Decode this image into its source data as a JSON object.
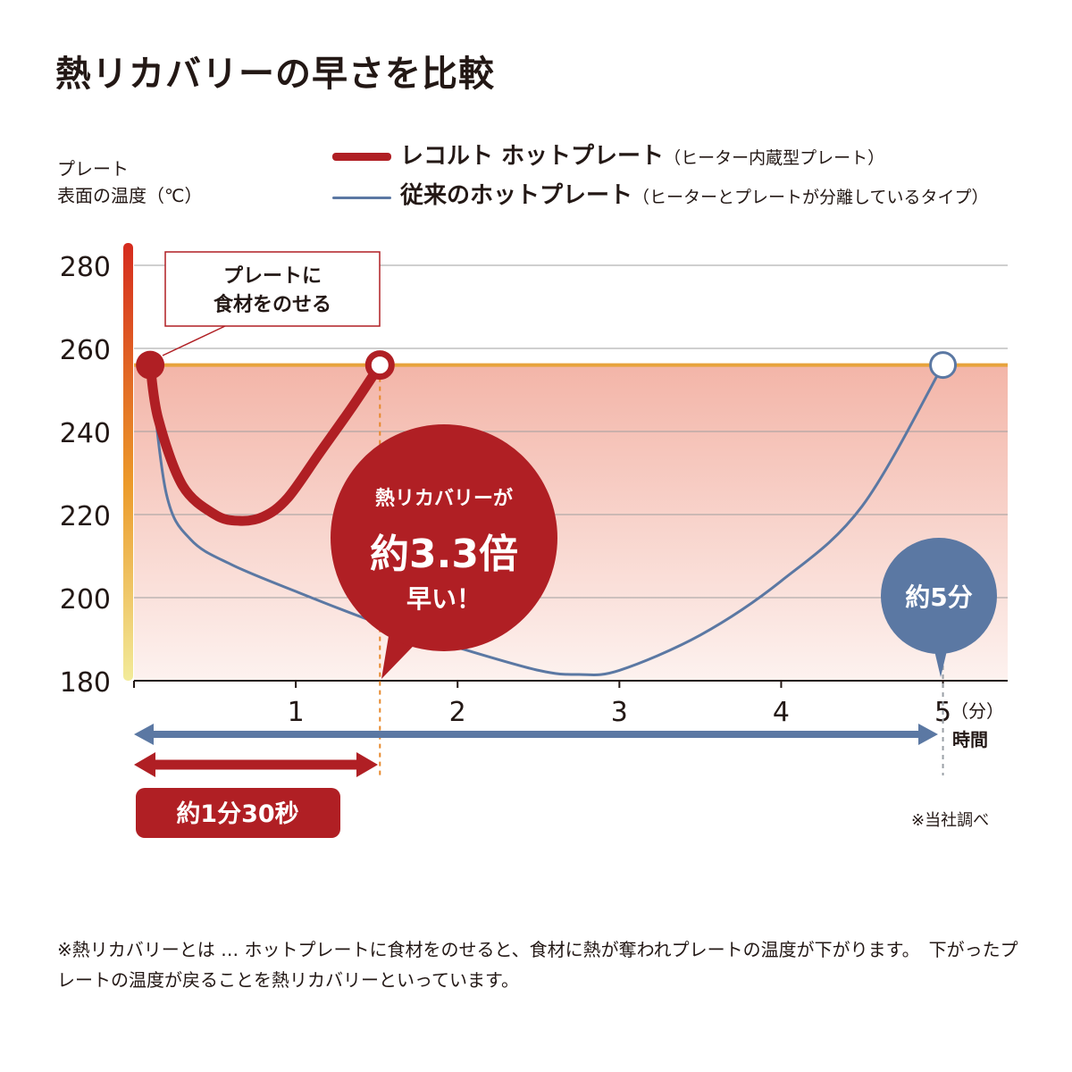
{
  "title": "熱リカバリーの早さを比較",
  "y_axis_label_line1": "プレート",
  "y_axis_label_line2": "表面の温度（℃）",
  "legend": {
    "recolte": {
      "name": "レコルト ホットプレート",
      "note": "（ヒーター内蔵型プレート）"
    },
    "conventional": {
      "name": "従来のホットプレート",
      "note": "（ヒーターとプレートが分離しているタイプ）"
    }
  },
  "annotations": {
    "callout_line1": "プレートに",
    "callout_line2": "食材をのせる",
    "bubble_line1": "熱リカバリーが",
    "bubble_big": "約3.3倍",
    "bubble_line3": "早い！",
    "five_min": "約5分",
    "badge": "約1分30秒",
    "unit": "（分）",
    "xlabel": "時間",
    "source": "※当社調べ"
  },
  "footnote": "※熱リカバリーとは … ホットプレートに食材をのせると、食材に熱が奪われプレートの温度が下がります。　下がったプレートの温度が戻ることを熱リカバリーといっています。",
  "colors": {
    "red": "#b01f24",
    "blue": "#5b78a3",
    "target_line": "#e7a33c"
  },
  "chart_data": {
    "type": "line",
    "xlim": [
      0,
      5.4
    ],
    "ylim": [
      180,
      280
    ],
    "x_ticks": [
      1,
      2,
      3,
      4,
      5
    ],
    "x_tick_labels": [
      "1",
      "2",
      "3",
      "4",
      "5"
    ],
    "y_ticks": [
      180,
      200,
      220,
      240,
      260,
      280
    ],
    "y_tick_labels": [
      "180",
      "200",
      "220",
      "240",
      "260",
      "280"
    ],
    "target_temperature": 256,
    "series": [
      {
        "name": "レコルト ホットプレート",
        "color": "#b01f24",
        "x": [
          0.1,
          0.15,
          0.3,
          0.5,
          0.65,
          0.8,
          0.95,
          1.15,
          1.35,
          1.52
        ],
        "y": [
          256,
          243,
          227,
          220,
          218.5,
          219.5,
          224,
          235,
          246,
          256
        ]
      },
      {
        "name": "従来のホットプレート",
        "color": "#5b78a3",
        "x": [
          0.1,
          0.2,
          0.35,
          0.6,
          1.0,
          1.5,
          2.0,
          2.5,
          2.75,
          3.0,
          3.5,
          4.0,
          4.5,
          5.0
        ],
        "y": [
          256,
          225,
          214,
          208,
          201.5,
          194,
          188,
          182.5,
          181.5,
          182.5,
          191,
          204,
          222,
          256
        ]
      }
    ]
  }
}
